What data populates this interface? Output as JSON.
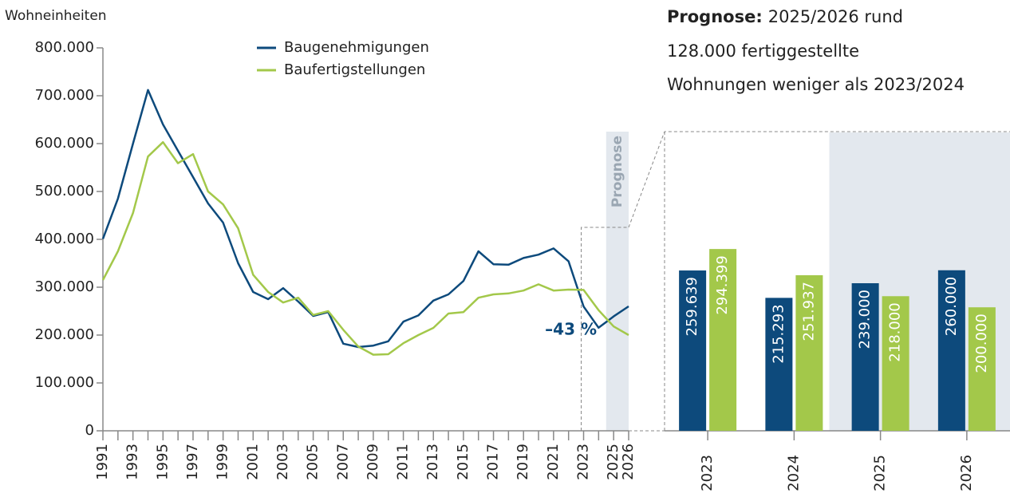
{
  "chart_data": [
    {
      "type": "line",
      "y_label": "Wohneinheiten",
      "x": [
        1991,
        1992,
        1993,
        1994,
        1995,
        1996,
        1997,
        1998,
        1999,
        2000,
        2001,
        2002,
        2003,
        2004,
        2005,
        2006,
        2007,
        2008,
        2009,
        2010,
        2011,
        2012,
        2013,
        2014,
        2015,
        2016,
        2017,
        2018,
        2019,
        2020,
        2021,
        2022,
        2023,
        2024,
        2025,
        2026
      ],
      "xlim": [
        1991,
        2026
      ],
      "xticks": [
        1991,
        1993,
        1995,
        1997,
        1999,
        2001,
        2003,
        2005,
        2007,
        2009,
        2011,
        2013,
        2015,
        2017,
        2019,
        2021,
        2023,
        2025,
        2026
      ],
      "ylim": [
        0,
        800000
      ],
      "yticks": [
        0,
        {
          "value": 100000,
          "label": "100.000"
        },
        {
          "value": 200000,
          "label": "200.000"
        },
        {
          "value": 300000,
          "label": "300.000"
        },
        {
          "value": 400000,
          "label": "400.000"
        },
        {
          "value": 500000,
          "label": "500.000"
        },
        {
          "value": 600000,
          "label": "600.000"
        },
        {
          "value": 700000,
          "label": "700.000"
        },
        {
          "value": 800000,
          "label": "800.000"
        }
      ],
      "series": [
        {
          "name": "Baugenehmigungen",
          "color": "#0d4a7c",
          "values": [
            401000,
            485000,
            600000,
            712000,
            640000,
            585000,
            530000,
            475000,
            435000,
            350000,
            290000,
            275000,
            298000,
            270000,
            240000,
            248000,
            182000,
            175000,
            178000,
            187000,
            228000,
            241000,
            272000,
            285000,
            313000,
            375000,
            348000,
            347000,
            361000,
            368000,
            381000,
            354000,
            259639,
            215293,
            239000,
            260000
          ]
        },
        {
          "name": "Baufertigstellungen",
          "color": "#a3c84a",
          "values": [
            315000,
            375000,
            455000,
            573000,
            603000,
            559000,
            578000,
            500000,
            473000,
            423000,
            326000,
            290000,
            268000,
            278000,
            242000,
            250000,
            211000,
            176000,
            159000,
            160000,
            183000,
            200000,
            215000,
            245000,
            248000,
            278000,
            285000,
            287000,
            293000,
            306000,
            293000,
            295000,
            294399,
            251937,
            218000,
            200000
          ]
        }
      ],
      "shade_label": "Prognose",
      "annotation": "–43 %"
    },
    {
      "type": "bar",
      "title_bold": "Prognose:",
      "title_lines": [
        "2025/2026 rund",
        "128.000 fertiggestellte",
        "Wohnungen weniger als 2023/2024"
      ],
      "categories": [
        "2023",
        "2024",
        "2025",
        "2026"
      ],
      "series": [
        {
          "name": "Baugenehmigungen",
          "color": "#0d4a7c",
          "values": [
            259639,
            215293,
            239000,
            260000
          ],
          "value_labels": [
            "259.639",
            "215.293",
            "239.000",
            "260.000"
          ]
        },
        {
          "name": "Baufertigstellungen",
          "color": "#a3c84a",
          "values": [
            294399,
            251937,
            218000,
            200000
          ],
          "value_labels": [
            "294.399",
            "251.937",
            "218.000",
            "200.000"
          ]
        }
      ]
    }
  ]
}
